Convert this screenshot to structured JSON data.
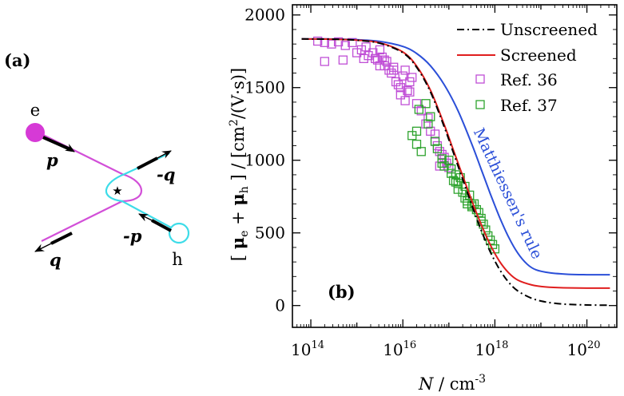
{
  "colors": {
    "unscreened": "#000000",
    "screened": "#e01e1e",
    "matthiessen": "#2b4fd8",
    "ref36": "#c04fd6",
    "ref37": "#2ea32e",
    "electron": "#d63ad6",
    "hole": "#3ddce8",
    "electron_line": "#d24fd8",
    "hole_line": "#3ddce8"
  },
  "panel_a": {
    "label": "(a)",
    "electron_label": "e",
    "hole_label": "h",
    "momenta": {
      "p": "p",
      "minus_q": "-q",
      "minus_p": "-p",
      "q": "q"
    },
    "vertex_symbol": "★"
  },
  "panel_b": {
    "label": "(b)",
    "ylabel": "[ μe + μh ] / [cm²/(V·s)]",
    "ylabel_parts": {
      "open": "[ ",
      "mu1": "μ",
      "sub1": "e",
      "plus": " + ",
      "mu2": "μ",
      "sub2": "h",
      "close": " ] / [cm",
      "sup": "2",
      "tail": "/(V·s)]"
    },
    "xlabel": "N / cm-3",
    "xlabel_parts": {
      "N": "N",
      "mid": " / cm",
      "sup": "-3"
    },
    "annotation": "Matthiessen's rule"
  },
  "chart_data": {
    "type": "scatter",
    "title": "",
    "xlabel": "N / cm-3",
    "ylabel": "[ μe + μh ] / [cm²/(V·s)]",
    "x_scale": "log10",
    "xlim_log10": [
      13.6,
      20.65
    ],
    "ylim": [
      -150,
      2070
    ],
    "x_ticks": [
      {
        "exp": 14,
        "base": "10",
        "sup": "14"
      },
      {
        "exp": 16,
        "base": "10",
        "sup": "16"
      },
      {
        "exp": 18,
        "base": "10",
        "sup": "18"
      },
      {
        "exp": 20,
        "base": "10",
        "sup": "20"
      }
    ],
    "y_ticks": [
      0,
      500,
      1000,
      1500,
      2000
    ],
    "legend_position": "top-right",
    "legend": [
      "Unscreened",
      "Screened",
      "Ref. 36",
      "Ref. 37"
    ],
    "series": [
      {
        "name": "Unscreened",
        "kind": "line",
        "style": "dashdot",
        "log10_x": [
          13.8,
          14.5,
          15.0,
          15.5,
          16.0,
          16.3,
          16.6,
          16.9,
          17.1,
          17.3,
          17.5,
          17.7,
          17.9,
          18.1,
          18.3,
          18.5,
          18.8,
          19.1,
          19.5,
          20.0,
          20.5
        ],
        "y": [
          1835,
          1833,
          1826,
          1805,
          1740,
          1640,
          1470,
          1230,
          1050,
          870,
          690,
          520,
          370,
          250,
          160,
          100,
          50,
          25,
          10,
          4,
          2
        ]
      },
      {
        "name": "Screened",
        "kind": "line",
        "style": "solid",
        "log10_x": [
          13.8,
          14.5,
          15.0,
          15.5,
          16.0,
          16.3,
          16.6,
          16.9,
          17.1,
          17.3,
          17.5,
          17.7,
          17.9,
          18.1,
          18.3,
          18.5,
          18.8,
          19.1,
          19.5,
          20.0,
          20.5
        ],
        "y": [
          1835,
          1833,
          1827,
          1808,
          1745,
          1648,
          1482,
          1245,
          1068,
          893,
          720,
          560,
          418,
          305,
          225,
          175,
          142,
          128,
          122,
          120,
          120
        ]
      },
      {
        "name": "Matthiessen's rule",
        "kind": "line",
        "style": "solid",
        "log10_x": [
          13.8,
          14.5,
          15.0,
          15.5,
          16.0,
          16.3,
          16.6,
          16.9,
          17.2,
          17.5,
          17.7,
          17.9,
          18.1,
          18.3,
          18.5,
          18.7,
          18.9,
          19.2,
          19.6,
          20.0,
          20.5
        ],
        "y": [
          1835,
          1834,
          1830,
          1818,
          1783,
          1735,
          1650,
          1520,
          1340,
          1110,
          940,
          770,
          610,
          470,
          360,
          285,
          245,
          225,
          215,
          212,
          212
        ]
      },
      {
        "name": "Ref. 36",
        "kind": "scatter",
        "marker": "open-square",
        "log10_x": [
          14.15,
          14.3,
          14.45,
          14.6,
          14.75,
          14.9,
          15.0,
          15.1,
          15.2,
          15.25,
          15.35,
          15.4,
          15.45,
          15.5,
          15.55,
          15.6,
          15.65,
          15.7,
          15.75,
          15.8,
          15.85,
          15.9,
          15.95,
          16.0,
          16.05,
          16.1,
          16.15,
          16.2,
          15.5,
          15.6,
          15.8,
          15.95,
          16.05,
          16.15,
          16.3,
          16.4,
          16.5,
          16.55,
          16.6,
          16.7,
          16.75,
          16.8,
          16.85,
          16.9,
          16.7,
          16.8,
          16.95,
          17.0,
          14.3,
          14.7,
          15.15
        ],
        "y": [
          1820,
          1810,
          1800,
          1815,
          1790,
          1810,
          1740,
          1760,
          1780,
          1720,
          1740,
          1700,
          1690,
          1760,
          1710,
          1650,
          1680,
          1620,
          1600,
          1640,
          1540,
          1520,
          1500,
          1580,
          1620,
          1480,
          1540,
          1570,
          1650,
          1690,
          1620,
          1450,
          1410,
          1470,
          1390,
          1340,
          1250,
          1290,
          1200,
          1180,
          1100,
          1060,
          1040,
          1020,
          1130,
          960,
          980,
          950,
          1680,
          1690,
          1700
        ]
      },
      {
        "name": "Ref. 37",
        "kind": "scatter",
        "marker": "open-square",
        "log10_x": [
          16.2,
          16.3,
          16.4,
          16.5,
          16.6,
          16.7,
          16.75,
          16.85,
          16.9,
          17.0,
          17.05,
          17.1,
          17.15,
          17.2,
          17.25,
          17.3,
          17.35,
          17.4,
          17.45,
          17.5,
          17.55,
          17.6,
          17.65,
          17.7,
          17.75,
          17.8,
          17.85,
          17.9,
          17.95,
          18.0,
          16.35,
          16.55,
          16.85,
          17.05,
          17.2,
          17.35,
          17.5,
          17.7,
          17.15,
          17.4,
          16.3
        ],
        "y": [
          1170,
          1110,
          1060,
          1390,
          1300,
          1130,
          1080,
          1010,
          960,
          1000,
          940,
          860,
          900,
          840,
          880,
          780,
          820,
          720,
          760,
          690,
          700,
          660,
          640,
          580,
          560,
          520,
          480,
          450,
          420,
          390,
          1350,
          1250,
          980,
          910,
          800,
          740,
          680,
          600,
          850,
          700,
          1200
        ]
      }
    ]
  }
}
